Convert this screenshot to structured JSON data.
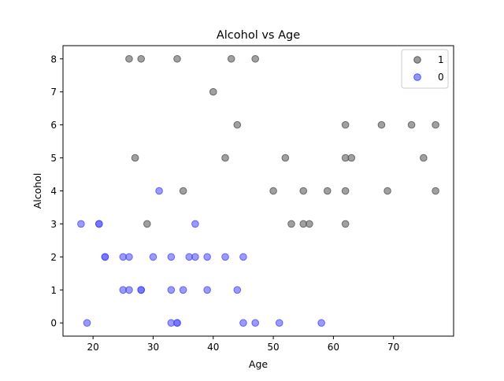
{
  "chart_data": {
    "type": "scatter",
    "title": "Alcohol vs Age",
    "xlabel": "Age",
    "ylabel": "Alcohol",
    "xlim": [
      15,
      80
    ],
    "ylim": [
      -0.4,
      8.4
    ],
    "xticks": [
      20,
      30,
      40,
      50,
      60,
      70
    ],
    "yticks": [
      0,
      1,
      2,
      3,
      4,
      5,
      6,
      7,
      8
    ],
    "grid": false,
    "legend_position": "top-right",
    "series": [
      {
        "name": "1",
        "color": "#808080",
        "points": [
          [
            26,
            8
          ],
          [
            28,
            8
          ],
          [
            34,
            8
          ],
          [
            43,
            8
          ],
          [
            47,
            8
          ],
          [
            40,
            7
          ],
          [
            44,
            6
          ],
          [
            62,
            6
          ],
          [
            68,
            6
          ],
          [
            73,
            6
          ],
          [
            77,
            6
          ],
          [
            27,
            5
          ],
          [
            42,
            5
          ],
          [
            52,
            5
          ],
          [
            62,
            5
          ],
          [
            63,
            5
          ],
          [
            75,
            5
          ],
          [
            35,
            4
          ],
          [
            50,
            4
          ],
          [
            55,
            4
          ],
          [
            59,
            4
          ],
          [
            62,
            4
          ],
          [
            69,
            4
          ],
          [
            77,
            4
          ],
          [
            29,
            3
          ],
          [
            53,
            3
          ],
          [
            55,
            3
          ],
          [
            56,
            3
          ],
          [
            62,
            3
          ]
        ]
      },
      {
        "name": "0",
        "color": "#6666ff",
        "points": [
          [
            18,
            3
          ],
          [
            21,
            3
          ],
          [
            21,
            3
          ],
          [
            37,
            3
          ],
          [
            31,
            4
          ],
          [
            22,
            2
          ],
          [
            22,
            2
          ],
          [
            25,
            2
          ],
          [
            26,
            2
          ],
          [
            30,
            2
          ],
          [
            33,
            2
          ],
          [
            36,
            2
          ],
          [
            37,
            2
          ],
          [
            39,
            2
          ],
          [
            42,
            2
          ],
          [
            45,
            2
          ],
          [
            25,
            1
          ],
          [
            26,
            1
          ],
          [
            28,
            1
          ],
          [
            28,
            1
          ],
          [
            33,
            1
          ],
          [
            35,
            1
          ],
          [
            39,
            1
          ],
          [
            44,
            1
          ],
          [
            19,
            0
          ],
          [
            33,
            0
          ],
          [
            34,
            0
          ],
          [
            34,
            0
          ],
          [
            45,
            0
          ],
          [
            47,
            0
          ],
          [
            51,
            0
          ],
          [
            58,
            0
          ]
        ]
      }
    ]
  }
}
